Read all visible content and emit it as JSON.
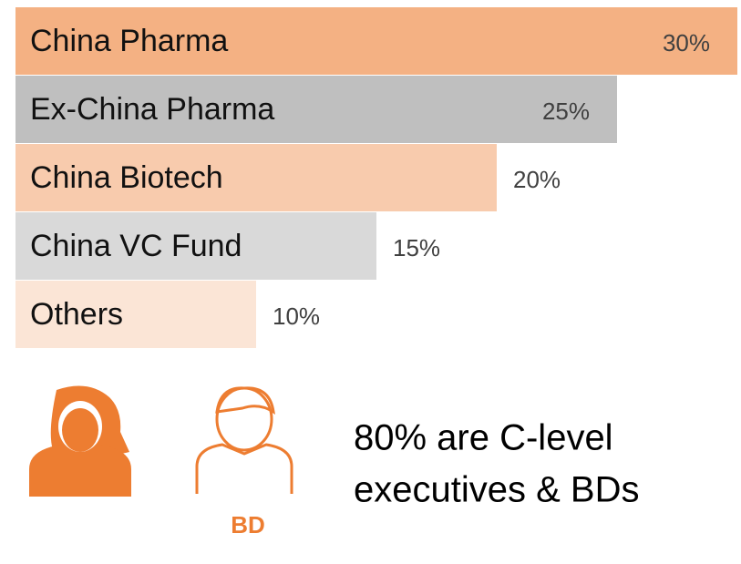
{
  "chart_data": {
    "type": "bar",
    "orientation": "horizontal",
    "categories": [
      "China Pharma",
      "Ex-China Pharma",
      "China Biotech",
      "China VC Fund",
      "Others"
    ],
    "values": [
      30,
      25,
      20,
      15,
      10
    ],
    "value_labels": [
      "30%",
      "25%",
      "20%",
      "15%",
      "10%"
    ],
    "colors": [
      "#f4b183",
      "#bfbfbf",
      "#f8cbad",
      "#d9d9d9",
      "#fbe5d6"
    ],
    "annotations": [
      "80% are C-level",
      "executives  & BDs"
    ],
    "icon_label": "BD"
  }
}
